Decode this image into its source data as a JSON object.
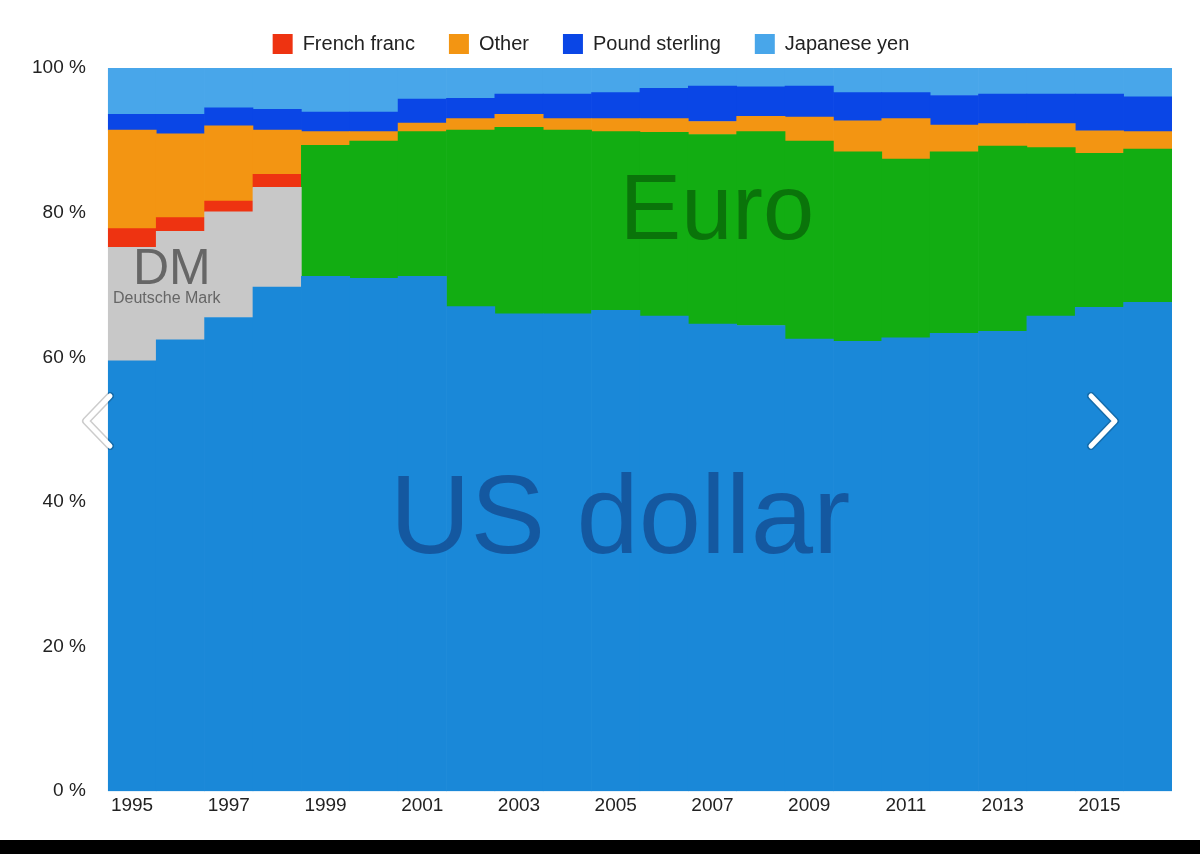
{
  "chart_data": {
    "type": "bar",
    "stacked": true,
    "categories": [
      "1995",
      null,
      "1997",
      null,
      "1999",
      null,
      "2001",
      null,
      "2003",
      null,
      "2005",
      null,
      "2007",
      null,
      "2009",
      null,
      "2011",
      null,
      "2013",
      null,
      "2015",
      null
    ],
    "series": [
      {
        "color": "#1a88d8",
        "values": [
          59.5,
          62.4,
          65.5,
          69.7,
          71.2,
          70.9,
          71.2,
          67.0,
          66.0,
          66.0,
          66.5,
          65.7,
          64.6,
          64.4,
          62.5,
          62.2,
          62.7,
          63.3,
          63.6,
          65.7,
          66.9,
          67.6
        ]
      },
      {
        "color": "#c8c8c8",
        "values": [
          15.7,
          15.0,
          14.6,
          13.8,
          null,
          null,
          null,
          null,
          null,
          null,
          null,
          null,
          null,
          null,
          null,
          null,
          null,
          null,
          null,
          null,
          null,
          null
        ]
      },
      {
        "color": "#12ad12",
        "values": [
          null,
          null,
          null,
          null,
          18.1,
          19.0,
          20.0,
          24.4,
          25.8,
          25.4,
          24.7,
          25.4,
          26.2,
          26.8,
          27.4,
          26.2,
          24.7,
          25.1,
          25.6,
          23.3,
          21.3,
          21.2
        ]
      },
      {
        "name": "French franc",
        "color": "#ee3311",
        "values": [
          2.6,
          1.9,
          1.5,
          1.8,
          null,
          null,
          null,
          null,
          null,
          null,
          null,
          null,
          null,
          null,
          null,
          null,
          null,
          null,
          null,
          null,
          null,
          null
        ]
      },
      {
        "name": "Other",
        "color": "#f39512",
        "values": [
          13.6,
          11.6,
          10.4,
          6.1,
          1.9,
          1.3,
          1.2,
          1.6,
          1.8,
          1.6,
          1.8,
          1.9,
          1.8,
          2.1,
          3.3,
          4.3,
          5.6,
          3.7,
          3.1,
          3.3,
          3.1,
          2.4
        ]
      },
      {
        "name": "Pound sterling",
        "color": "#0a46e6",
        "values": [
          2.2,
          2.7,
          2.5,
          2.9,
          2.7,
          2.7,
          3.3,
          2.8,
          2.8,
          3.4,
          3.6,
          4.2,
          4.9,
          4.1,
          4.3,
          3.9,
          3.6,
          4.1,
          4.1,
          4.1,
          5.1,
          4.8
        ]
      },
      {
        "name": "Japanese yen",
        "color": "#48a6ea",
        "values": [
          6.4,
          6.4,
          5.5,
          5.7,
          6.1,
          6.1,
          4.3,
          4.2,
          3.6,
          3.6,
          3.4,
          2.8,
          2.5,
          2.6,
          2.5,
          3.4,
          3.4,
          3.8,
          3.6,
          3.6,
          3.6,
          4.0
        ]
      }
    ],
    "ylim": [
      0,
      100
    ],
    "yticks": [
      {
        "value": 0,
        "label": "0 %"
      },
      {
        "value": 20,
        "label": "20 %"
      },
      {
        "value": 40,
        "label": "40 %"
      },
      {
        "value": 60,
        "label": "60 %"
      },
      {
        "value": 80,
        "label": "80 %"
      },
      {
        "value": 100,
        "label": "100 %"
      }
    ],
    "grid": false,
    "legend": "top",
    "annotations": [
      "US dollar",
      "Euro",
      "DM",
      "Deutsche Mark"
    ]
  }
}
